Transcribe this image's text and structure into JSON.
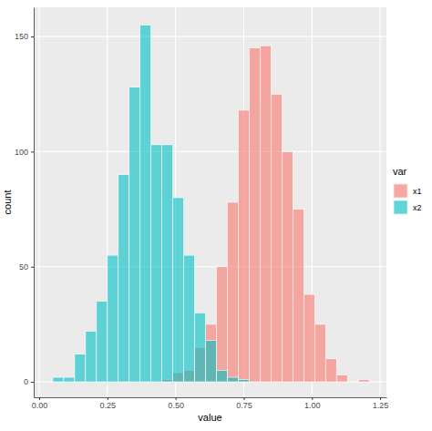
{
  "chart_data": {
    "type": "histogram",
    "x_label": "value",
    "y_label": "count",
    "legend_title": "var",
    "legend": "right",
    "grid": true,
    "bins": [
      0.05,
      0.09,
      0.13,
      0.17,
      0.21,
      0.25,
      0.29,
      0.33,
      0.37,
      0.41,
      0.45,
      0.49,
      0.53,
      0.57,
      0.61,
      0.65,
      0.69,
      0.73,
      0.77,
      0.81,
      0.85,
      0.89,
      0.93,
      0.97,
      1.01,
      1.05,
      1.09,
      1.13,
      1.17,
      1.21
    ],
    "series": [
      {
        "name": "x1",
        "color": "#F8766D",
        "values": [
          0,
          0,
          0,
          0,
          0,
          0,
          0,
          0,
          0,
          0,
          1,
          4,
          5,
          15,
          25,
          50,
          78,
          118,
          145,
          146,
          125,
          100,
          75,
          38,
          25,
          10,
          3,
          0,
          1
        ]
      },
      {
        "name": "x2",
        "color": "#00BFC4",
        "values": [
          2,
          2,
          12,
          22,
          35,
          55,
          90,
          128,
          155,
          103,
          103,
          80,
          55,
          30,
          18,
          5,
          2,
          1,
          0,
          0,
          0,
          0,
          0,
          0,
          0,
          0,
          0,
          0,
          0
        ]
      }
    ],
    "xlim": [
      -0.02,
      1.273
    ],
    "xticks": [
      {
        "value": 0,
        "label": "0.00"
      },
      0.25,
      {
        "value": 0.5,
        "label": "0.50"
      },
      0.75,
      {
        "value": 1,
        "label": "1.00"
      },
      1.25
    ],
    "ylim": [
      -6.7,
      162.7
    ],
    "yticks": [
      0,
      50,
      100,
      150
    ]
  }
}
